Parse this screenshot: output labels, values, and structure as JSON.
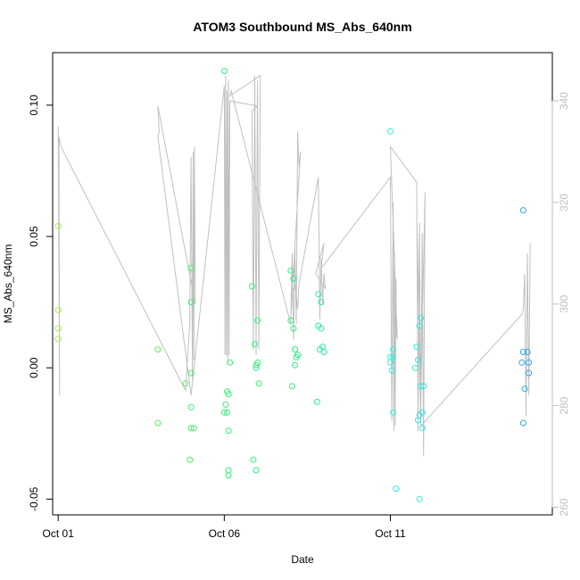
{
  "chart_data": {
    "type": "scatter",
    "title": "ATOM3 Southbound MS_Abs_640nm",
    "xlabel": "Date",
    "ylabel": "MS_Abs_640nm",
    "x_axis": {
      "type": "date",
      "range": [
        "2016-09-30T20:00",
        "2016-10-15T21:00"
      ],
      "ticks": [
        {
          "value": "2016-10-01",
          "label": "Oct 01"
        },
        {
          "value": "2016-10-06",
          "label": "Oct 06"
        },
        {
          "value": "2016-10-11",
          "label": "Oct 11"
        }
      ]
    },
    "y_axis": {
      "range": [
        -0.056,
        0.12
      ],
      "ticks": [
        {
          "value": -0.05,
          "label": "-0.05"
        },
        {
          "value": 0.0,
          "label": "0.00"
        },
        {
          "value": 0.05,
          "label": "0.05"
        },
        {
          "value": 0.1,
          "label": "0.10"
        }
      ]
    },
    "y2_axis": {
      "range": [
        258.5,
        349.5
      ],
      "color": "#bebebe",
      "ticks": [
        {
          "value": 260,
          "label": "260"
        },
        {
          "value": 280,
          "label": "280"
        },
        {
          "value": 300,
          "label": "300"
        },
        {
          "value": 320,
          "label": "320"
        },
        {
          "value": 340,
          "label": "340"
        }
      ]
    },
    "grid": false,
    "legend": "none",
    "colors": {
      "axis": "#000000",
      "line": "#c0c0c0"
    },
    "points": [
      {
        "x": "2016-10-01T00:00",
        "y": 0.054,
        "color": "#a4f04a"
      },
      {
        "x": "2016-10-01T00:00",
        "y": 0.022,
        "color": "#a4f04a"
      },
      {
        "x": "2016-10-01T00:00",
        "y": 0.015,
        "color": "#a4f04a"
      },
      {
        "x": "2016-10-01T00:00",
        "y": 0.011,
        "color": "#a4f04a"
      },
      {
        "x": "2016-10-04T00:00",
        "y": 0.007,
        "color": "#5ef05a"
      },
      {
        "x": "2016-10-04T00:00",
        "y": -0.021,
        "color": "#5ef05a"
      },
      {
        "x": "2016-10-04T20:00",
        "y": -0.006,
        "color": "#4cf05c"
      },
      {
        "x": "2016-10-05T00:00",
        "y": 0.038,
        "color": "#44f064"
      },
      {
        "x": "2016-10-05T00:00",
        "y": 0.025,
        "color": "#44f064"
      },
      {
        "x": "2016-10-05T00:00",
        "y": -0.002,
        "color": "#44f064"
      },
      {
        "x": "2016-10-05T00:00",
        "y": -0.015,
        "color": "#44f064"
      },
      {
        "x": "2016-10-05T00:00",
        "y": -0.023,
        "color": "#44f064"
      },
      {
        "x": "2016-10-05T02:00",
        "y": -0.023,
        "color": "#44f064"
      },
      {
        "x": "2016-10-04T23:00",
        "y": -0.035,
        "color": "#44f064"
      },
      {
        "x": "2016-10-06T00:00",
        "y": 0.113,
        "color": "#36f070"
      },
      {
        "x": "2016-10-06T02:00",
        "y": -0.009,
        "color": "#36f070"
      },
      {
        "x": "2016-10-06T03:00",
        "y": -0.01,
        "color": "#36f070"
      },
      {
        "x": "2016-10-06T01:00",
        "y": -0.014,
        "color": "#36f070"
      },
      {
        "x": "2016-10-06T00:00",
        "y": -0.017,
        "color": "#36f070"
      },
      {
        "x": "2016-10-06T02:00",
        "y": -0.017,
        "color": "#36f070"
      },
      {
        "x": "2016-10-06T03:00",
        "y": -0.024,
        "color": "#36f070"
      },
      {
        "x": "2016-10-06T04:00",
        "y": 0.002,
        "color": "#36f070"
      },
      {
        "x": "2016-10-06T03:00",
        "y": -0.039,
        "color": "#36f070"
      },
      {
        "x": "2016-10-06T03:00",
        "y": -0.041,
        "color": "#36f070"
      },
      {
        "x": "2016-10-06T20:00",
        "y": 0.031,
        "color": "#30f074"
      },
      {
        "x": "2016-10-07T00:00",
        "y": 0.018,
        "color": "#30f074"
      },
      {
        "x": "2016-10-06T22:00",
        "y": 0.009,
        "color": "#30f074"
      },
      {
        "x": "2016-10-07T00:00",
        "y": 0.002,
        "color": "#30f074"
      },
      {
        "x": "2016-10-06T23:00",
        "y": 0.001,
        "color": "#30f074"
      },
      {
        "x": "2016-10-06T23:00",
        "y": 0.0,
        "color": "#30f074"
      },
      {
        "x": "2016-10-07T01:00",
        "y": -0.006,
        "color": "#30f074"
      },
      {
        "x": "2016-10-06T21:00",
        "y": -0.035,
        "color": "#30f074"
      },
      {
        "x": "2016-10-06T23:00",
        "y": -0.039,
        "color": "#30f074"
      },
      {
        "x": "2016-10-08T00:00",
        "y": 0.037,
        "color": "#2af080"
      },
      {
        "x": "2016-10-08T02:00",
        "y": 0.034,
        "color": "#2af080"
      },
      {
        "x": "2016-10-08T00:00",
        "y": 0.018,
        "color": "#2af080"
      },
      {
        "x": "2016-10-08T02:00",
        "y": 0.015,
        "color": "#2af080"
      },
      {
        "x": "2016-10-08T03:00",
        "y": 0.007,
        "color": "#2af080"
      },
      {
        "x": "2016-10-08T05:00",
        "y": 0.005,
        "color": "#2af080"
      },
      {
        "x": "2016-10-08T04:00",
        "y": 0.004,
        "color": "#2af080"
      },
      {
        "x": "2016-10-08T03:00",
        "y": 0.001,
        "color": "#2af080"
      },
      {
        "x": "2016-10-08T01:00",
        "y": -0.007,
        "color": "#2af080"
      },
      {
        "x": "2016-10-08T20:00",
        "y": 0.028,
        "color": "#2af098"
      },
      {
        "x": "2016-10-08T22:00",
        "y": 0.025,
        "color": "#2af098"
      },
      {
        "x": "2016-10-08T20:00",
        "y": 0.016,
        "color": "#2af098"
      },
      {
        "x": "2016-10-08T22:00",
        "y": 0.015,
        "color": "#2af098"
      },
      {
        "x": "2016-10-08T23:00",
        "y": 0.008,
        "color": "#2af098"
      },
      {
        "x": "2016-10-09T00:00",
        "y": 0.006,
        "color": "#2af098"
      },
      {
        "x": "2016-10-08T21:00",
        "y": 0.007,
        "color": "#2af098"
      },
      {
        "x": "2016-10-08T19:00",
        "y": -0.013,
        "color": "#2af098"
      },
      {
        "x": "2016-10-11T00:00",
        "y": 0.09,
        "color": "#2cf0dc"
      },
      {
        "x": "2016-10-11T02:00",
        "y": 0.007,
        "color": "#2cf0dc"
      },
      {
        "x": "2016-10-11T00:00",
        "y": 0.004,
        "color": "#2cf0dc"
      },
      {
        "x": "2016-10-11T02:00",
        "y": 0.004,
        "color": "#2cf0dc"
      },
      {
        "x": "2016-10-11T00:00",
        "y": 0.002,
        "color": "#2cf0dc"
      },
      {
        "x": "2016-10-11T01:00",
        "y": -0.001,
        "color": "#2cf0dc"
      },
      {
        "x": "2016-10-11T02:00",
        "y": -0.017,
        "color": "#2cf0dc"
      },
      {
        "x": "2016-10-11T04:00",
        "y": -0.046,
        "color": "#2cf0dc"
      },
      {
        "x": "2016-10-11T19:00",
        "y": 0.008,
        "color": "#2ee8e8"
      },
      {
        "x": "2016-10-11T22:00",
        "y": 0.019,
        "color": "#2ee8e8"
      },
      {
        "x": "2016-10-11T21:00",
        "y": 0.016,
        "color": "#2ee8e8"
      },
      {
        "x": "2016-10-11T20:00",
        "y": 0.003,
        "color": "#2ee8e8"
      },
      {
        "x": "2016-10-11T18:00",
        "y": 0.0,
        "color": "#2ee8e8"
      },
      {
        "x": "2016-10-11T22:00",
        "y": -0.007,
        "color": "#2ee8e8"
      },
      {
        "x": "2016-10-12T00:00",
        "y": -0.007,
        "color": "#2ee8e8"
      },
      {
        "x": "2016-10-11T23:00",
        "y": -0.017,
        "color": "#2ee8e8"
      },
      {
        "x": "2016-10-11T21:00",
        "y": -0.018,
        "color": "#2ee8e8"
      },
      {
        "x": "2016-10-11T20:00",
        "y": -0.02,
        "color": "#2ee8e8"
      },
      {
        "x": "2016-10-11T23:00",
        "y": -0.023,
        "color": "#2ee8e8"
      },
      {
        "x": "2016-10-11T21:00",
        "y": -0.05,
        "color": "#2ee8e8"
      },
      {
        "x": "2016-10-15T00:00",
        "y": 0.06,
        "color": "#2aa8e8"
      },
      {
        "x": "2016-10-15T00:00",
        "y": 0.006,
        "color": "#2aa8e8"
      },
      {
        "x": "2016-10-15T03:00",
        "y": 0.006,
        "color": "#2aa8e8"
      },
      {
        "x": "2016-10-14T23:00",
        "y": 0.002,
        "color": "#2aa8e8"
      },
      {
        "x": "2016-10-15T04:00",
        "y": 0.002,
        "color": "#2aa8e8"
      },
      {
        "x": "2016-10-15T04:00",
        "y": -0.002,
        "color": "#2aa8e8"
      },
      {
        "x": "2016-10-15T01:00",
        "y": -0.008,
        "color": "#2aa8e8"
      },
      {
        "x": "2016-10-15T00:00",
        "y": -0.021,
        "color": "#2aa8e8"
      }
    ],
    "series": [
      {
        "axis": "right",
        "type": "line",
        "color": "#c0c0c0",
        "x": [
          "2016-10-01T00:00",
          "2016-10-01T01:00",
          "2016-10-01T00:30",
          "2016-10-01T02:00",
          "2016-10-04T20:00",
          "2016-10-04T23:00",
          "2016-10-05T00:00",
          "2016-10-05T01:00",
          "2016-10-05T01:30",
          "2016-10-05T02:00",
          "2016-10-05T02:30",
          "2016-10-05T03:00",
          "2016-10-04T00:00",
          "2016-10-04T01:00",
          "2016-10-04T00:00",
          "2016-10-05T00:00",
          "2016-10-06T00:00",
          "2016-10-06T00:30",
          "2016-10-06T01:00",
          "2016-10-06T01:30",
          "2016-10-06T02:00",
          "2016-10-06T02:30",
          "2016-10-06T03:00",
          "2016-10-06T03:30",
          "2016-10-06T04:00",
          "2016-10-07T00:00",
          "2016-10-06T20:00",
          "2016-10-06T21:00",
          "2016-10-06T22:00",
          "2016-10-06T23:00",
          "2016-10-07T00:00",
          "2016-10-07T01:00",
          "2016-10-07T02:00",
          "2016-10-06T04:00",
          "2016-10-06T05:00",
          "2016-10-08T00:00",
          "2016-10-08T01:00",
          "2016-10-08T02:00",
          "2016-10-08T03:00",
          "2016-10-08T04:00",
          "2016-10-08T05:00",
          "2016-10-08T06:00",
          "2016-10-08T07:00",
          "2016-10-08T00:00",
          "2016-10-08T01:00",
          "2016-10-08T03:00",
          "2016-10-08T05:00",
          "2016-10-08T06:00",
          "2016-10-08T20:00",
          "2016-10-08T21:00",
          "2016-10-08T22:00",
          "2016-10-08T23:00",
          "2016-10-09T00:00",
          "2016-10-09T01:00",
          "2016-10-08T18:00",
          "2016-10-09T00:00",
          "2016-10-08T22:00",
          "2016-10-11T00:00",
          "2016-10-11T01:00",
          "2016-10-11T02:00",
          "2016-10-11T02:30",
          "2016-10-11T03:00",
          "2016-10-11T03:30",
          "2016-10-11T04:00",
          "2016-10-11T04:30",
          "2016-10-11T05:00",
          "2016-10-11T00:00",
          "2016-10-11T19:00",
          "2016-10-11T20:00",
          "2016-10-11T21:00",
          "2016-10-11T22:00",
          "2016-10-11T23:00",
          "2016-10-12T00:00",
          "2016-10-12T01:00",
          "2016-10-11T22:00",
          "2016-10-11T19:00",
          "2016-10-11T22:00",
          "2016-10-14T23:00",
          "2016-10-15T00:00",
          "2016-10-15T01:00",
          "2016-10-15T02:00",
          "2016-10-15T03:00",
          "2016-10-15T04:00",
          "2016-10-15T05:00"
        ],
        "y": [
          335,
          282,
          333,
          331,
          283,
          296,
          329,
          285,
          330,
          289,
          331,
          300,
          339,
          334,
          333,
          282,
          343,
          290,
          345,
          290,
          342,
          288,
          344,
          290,
          340,
          339,
          338,
          291,
          345,
          290,
          344,
          291,
          345,
          341,
          342,
          296,
          310,
          293,
          311,
          296,
          334,
          327,
          330,
          297,
          302,
          304,
          299,
          304,
          325,
          297,
          309,
          300,
          306,
          303,
          306,
          312,
          307,
          325,
          277,
          320,
          275,
          310,
          276,
          305,
          294,
          293,
          331,
          324,
          275,
          316,
          277,
          314,
          270,
          322,
          281,
          318,
          276,
          298,
          299,
          306,
          278,
          310,
          282,
          312
        ]
      }
    ]
  }
}
